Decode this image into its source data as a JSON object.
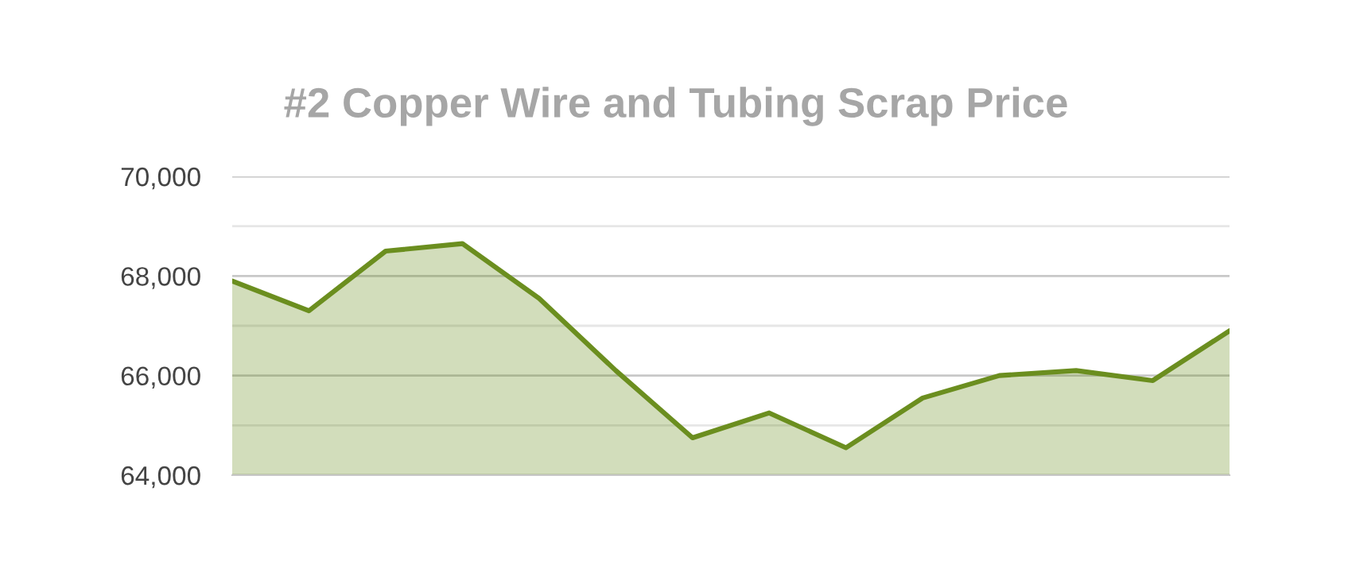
{
  "chart_data": {
    "type": "area",
    "title": "#2 Copper Wire and Tubing Scrap Price",
    "categories": [
      null,
      null,
      null,
      null,
      null,
      null,
      null,
      null,
      null,
      null,
      null,
      null,
      null,
      null
    ],
    "series": [
      {
        "color": "#6b8e1f",
        "values": [
          67900,
          67300,
          68500,
          68650,
          67550,
          66100,
          64750,
          65250,
          64550,
          65550,
          66000,
          66100,
          65900,
          66900
        ]
      }
    ],
    "ylim": [
      64000,
      70000
    ],
    "yticks": [
      {
        "value": 64000,
        "label": "64,000"
      },
      {
        "value": 65000,
        "label": null
      },
      {
        "value": 66000,
        "label": "66,000"
      },
      {
        "value": 67000,
        "label": null
      },
      {
        "value": 68000,
        "label": "68,000"
      },
      {
        "value": 69000,
        "label": null
      },
      {
        "value": 70000,
        "label": "70,000"
      }
    ],
    "grid": "y",
    "tick_labels": "y"
  }
}
